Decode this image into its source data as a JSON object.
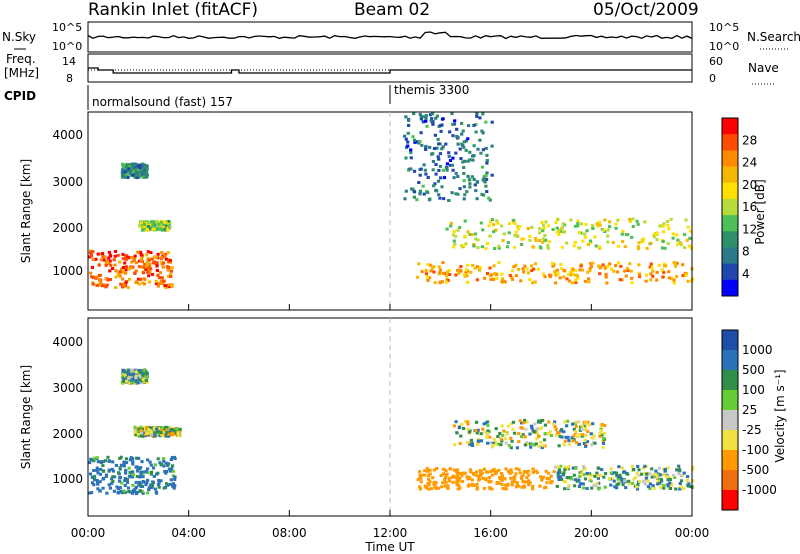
{
  "header": {
    "title": "Rankin Inlet (fitACF)",
    "beam": "Beam 02",
    "date": "05/Oct/2009"
  },
  "noise_panel": {
    "left_label": "N.Sky",
    "right_label": "N.Search",
    "left_ticks": [
      "10^5",
      "10^0"
    ],
    "right_ticks": [
      "10^5",
      "10^0"
    ]
  },
  "freq_panel": {
    "left_label_1": "Freq.",
    "left_label_2": "[MHz]",
    "right_label": "Nave",
    "left_ticks": [
      "14",
      "8"
    ],
    "right_ticks": [
      "60",
      "0"
    ]
  },
  "cpid_panel": {
    "label": "CPID",
    "segments": [
      {
        "text": "normalsound (fast) 157",
        "start_hour": 0
      },
      {
        "text": "themis 3300",
        "start_hour": 12
      }
    ]
  },
  "power_panel": {
    "ylabel": "Slant Range [km]",
    "yticks": [
      "4000",
      "3000",
      "2000",
      "1000"
    ],
    "colorbar": {
      "label": "Power [dB]",
      "ticks": [
        "28",
        "24",
        "20",
        "16",
        "12",
        "8",
        "4"
      ],
      "colors": [
        "#ff0000",
        "#ff4a00",
        "#ff8a00",
        "#f5b800",
        "#ffe000",
        "#b7dc3a",
        "#4fbf57",
        "#2f8f6a",
        "#2b7a8a",
        "#2046b0",
        "#0000ff"
      ]
    }
  },
  "velocity_panel": {
    "ylabel": "Slant Range [km]",
    "yticks": [
      "4000",
      "3000",
      "2000",
      "1000"
    ],
    "colorbar": {
      "label": "Velocity [m s⁻¹]",
      "ticks": [
        "1000",
        "500",
        "100",
        "25",
        "-25",
        "-100",
        "-500",
        "-1000"
      ],
      "colors": [
        "#1f4ea8",
        "#2b73b8",
        "#2f8f4a",
        "#66cc33",
        "#c8c8c8",
        "#f0e040",
        "#ff9a00",
        "#f07010",
        "#ff0000"
      ]
    }
  },
  "xaxis": {
    "label": "Time UT",
    "ticks": [
      "00:00",
      "04:00",
      "08:00",
      "12:00",
      "16:00",
      "20:00",
      "00:00"
    ]
  },
  "chart_data": [
    {
      "type": "heatmap",
      "title": "Power [dB]",
      "xlabel": "Time UT",
      "ylabel": "Slant Range [km]",
      "xlim_hours": [
        0,
        24
      ],
      "ylim_km": [
        180,
        4500
      ],
      "regions": [
        {
          "t0": 0.0,
          "t1": 3.3,
          "r0": 700,
          "r1": 1500,
          "level_db": 26
        },
        {
          "t0": 1.3,
          "t1": 2.3,
          "r0": 3100,
          "r1": 3400,
          "level_db": 8
        },
        {
          "t0": 2.0,
          "t1": 3.2,
          "r0": 1950,
          "r1": 2150,
          "level_db": 14
        },
        {
          "t0": 13.0,
          "t1": 24.0,
          "r0": 800,
          "r1": 1250,
          "level_db": 22
        },
        {
          "t0": 14.2,
          "t1": 24.0,
          "r0": 1550,
          "r1": 2200,
          "level_db": 16
        },
        {
          "t0": 12.5,
          "t1": 16.0,
          "r0": 2600,
          "r1": 4500,
          "level_db": 6
        }
      ]
    },
    {
      "type": "heatmap",
      "title": "Velocity [m s⁻¹]",
      "xlabel": "Time UT",
      "ylabel": "Slant Range [km]",
      "xlim_hours": [
        0,
        24
      ],
      "ylim_km": [
        180,
        4500
      ],
      "regions": [
        {
          "t0": 0.0,
          "t1": 3.4,
          "r0": 700,
          "r1": 1500,
          "velocity": 150
        },
        {
          "t0": 1.3,
          "t1": 2.3,
          "r0": 3100,
          "r1": 3400,
          "velocity": 40
        },
        {
          "t0": 1.8,
          "t1": 3.6,
          "r0": 1950,
          "r1": 2150,
          "velocity": 0
        },
        {
          "t0": 13.0,
          "t1": 18.5,
          "r0": 800,
          "r1": 1250,
          "velocity": -350
        },
        {
          "t0": 18.5,
          "t1": 24.0,
          "r0": 800,
          "r1": 1300,
          "velocity": 50
        },
        {
          "t0": 14.5,
          "t1": 20.5,
          "r0": 1700,
          "r1": 2300,
          "velocity": 0
        }
      ]
    }
  ]
}
